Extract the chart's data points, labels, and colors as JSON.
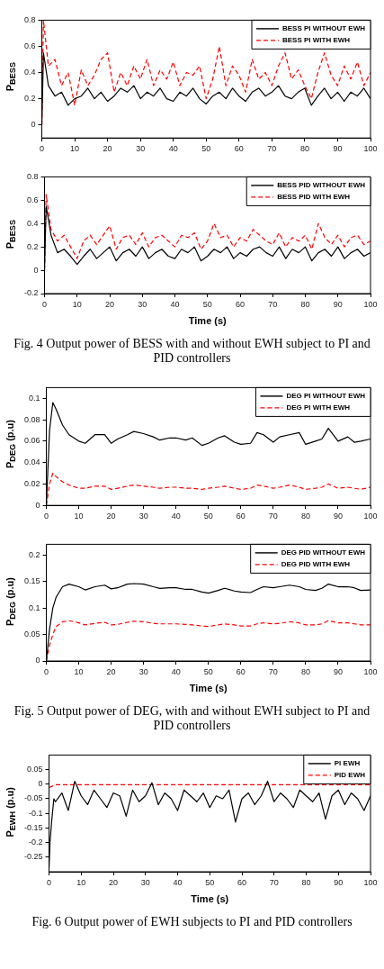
{
  "chart_data": [
    {
      "type": "line",
      "ylabel": "P$_{BESS}$",
      "xlim": [
        0,
        100
      ],
      "ylim": [
        -0.1,
        0.8
      ],
      "xticks": [
        0,
        10,
        20,
        30,
        40,
        50,
        60,
        70,
        80,
        90,
        100
      ],
      "yticks": [
        0,
        0.2,
        0.4,
        0.6,
        0.8
      ],
      "grid": false,
      "legend": "top right",
      "marker": "none",
      "x": [
        0,
        0.5,
        2,
        4,
        6,
        8,
        10,
        12,
        14,
        16,
        18,
        20,
        22,
        24,
        26,
        28,
        30,
        32,
        34,
        36,
        38,
        40,
        42,
        44,
        46,
        48,
        50,
        52,
        54,
        56,
        58,
        60,
        62,
        64,
        66,
        68,
        70,
        72,
        74,
        76,
        78,
        80,
        82,
        84,
        86,
        88,
        90,
        92,
        94,
        96,
        98,
        100
      ],
      "series": [
        {
          "name": "BESS PI WITHOUT EWH",
          "color": "#000000",
          "line_style": "solid",
          "values": [
            0,
            0.55,
            0.3,
            0.22,
            0.25,
            0.15,
            0.2,
            0.22,
            0.28,
            0.2,
            0.25,
            0.18,
            0.22,
            0.28,
            0.25,
            0.3,
            0.2,
            0.25,
            0.22,
            0.28,
            0.2,
            0.18,
            0.25,
            0.22,
            0.28,
            0.2,
            0.16,
            0.22,
            0.25,
            0.2,
            0.28,
            0.22,
            0.18,
            0.25,
            0.28,
            0.22,
            0.25,
            0.3,
            0.22,
            0.2,
            0.25,
            0.28,
            0.15,
            0.22,
            0.28,
            0.2,
            0.25,
            0.18,
            0.25,
            0.22,
            0.28,
            0.2
          ]
        },
        {
          "name": "BESS PI WITH EWH",
          "color": "#ff0000",
          "line_style": "dashed",
          "values": [
            0,
            0.8,
            0.45,
            0.5,
            0.3,
            0.4,
            0.15,
            0.42,
            0.3,
            0.38,
            0.5,
            0.55,
            0.25,
            0.4,
            0.3,
            0.45,
            0.35,
            0.5,
            0.3,
            0.42,
            0.35,
            0.48,
            0.3,
            0.4,
            0.38,
            0.45,
            0.2,
            0.35,
            0.6,
            0.3,
            0.45,
            0.38,
            0.25,
            0.5,
            0.35,
            0.4,
            0.3,
            0.45,
            0.55,
            0.35,
            0.42,
            0.3,
            0.2,
            0.4,
            0.55,
            0.38,
            0.3,
            0.45,
            0.35,
            0.48,
            0.3,
            0.4
          ]
        }
      ]
    },
    {
      "type": "line",
      "ylabel": "P$_{BESS}$",
      "xlabel": "Time (s)",
      "xlim": [
        0,
        100
      ],
      "ylim": [
        -0.2,
        0.8
      ],
      "xticks": [
        0,
        10,
        20,
        30,
        40,
        50,
        60,
        70,
        80,
        90,
        100
      ],
      "yticks": [
        -0.2,
        0,
        0.2,
        0.4,
        0.6,
        0.8
      ],
      "grid": false,
      "legend": "top right",
      "marker": "none",
      "annotations": [
        "Fig. 4 Output power of BESS with and without EWH subject to PI and PID controllers"
      ],
      "x": [
        0,
        0.5,
        2,
        4,
        6,
        8,
        10,
        12,
        14,
        16,
        18,
        20,
        22,
        24,
        26,
        28,
        30,
        32,
        34,
        36,
        38,
        40,
        42,
        44,
        46,
        48,
        50,
        52,
        54,
        56,
        58,
        60,
        62,
        64,
        66,
        68,
        70,
        72,
        74,
        76,
        78,
        80,
        82,
        84,
        86,
        88,
        90,
        92,
        94,
        96,
        98,
        100
      ],
      "series": [
        {
          "name": "BESS PID WITHOUT EWH",
          "color": "#000000",
          "line_style": "solid",
          "values": [
            0,
            0.55,
            0.3,
            0.15,
            0.18,
            0.12,
            0.05,
            0.12,
            0.18,
            0.1,
            0.15,
            0.2,
            0.08,
            0.15,
            0.18,
            0.12,
            0.2,
            0.1,
            0.15,
            0.18,
            0.12,
            0.1,
            0.18,
            0.15,
            0.2,
            0.08,
            0.12,
            0.18,
            0.15,
            0.2,
            0.1,
            0.15,
            0.12,
            0.18,
            0.2,
            0.15,
            0.12,
            0.2,
            0.1,
            0.18,
            0.15,
            0.2,
            0.08,
            0.15,
            0.18,
            0.12,
            0.2,
            0.1,
            0.15,
            0.18,
            0.12,
            0.15
          ]
        },
        {
          "name": "BESS PID WITH EWH",
          "color": "#ff0000",
          "line_style": "dashed",
          "values": [
            0,
            0.65,
            0.35,
            0.25,
            0.3,
            0.2,
            0.1,
            0.25,
            0.3,
            0.22,
            0.3,
            0.38,
            0.18,
            0.28,
            0.3,
            0.22,
            0.32,
            0.2,
            0.28,
            0.3,
            0.25,
            0.2,
            0.3,
            0.28,
            0.32,
            0.18,
            0.25,
            0.4,
            0.28,
            0.3,
            0.2,
            0.28,
            0.25,
            0.35,
            0.3,
            0.25,
            0.22,
            0.32,
            0.2,
            0.28,
            0.25,
            0.3,
            0.18,
            0.4,
            0.28,
            0.22,
            0.3,
            0.2,
            0.28,
            0.3,
            0.22,
            0.25
          ]
        }
      ]
    },
    {
      "type": "line",
      "ylabel": "P$_{DEG}$ (p.u)",
      "xlim": [
        0,
        100
      ],
      "ylim": [
        0,
        0.11
      ],
      "xticks": [
        0,
        10,
        20,
        30,
        40,
        50,
        60,
        70,
        80,
        90,
        100
      ],
      "yticks": [
        0,
        0.02,
        0.04,
        0.06,
        0.08,
        0.1
      ],
      "grid": false,
      "legend": "top right",
      "marker": "none",
      "x": [
        0,
        1,
        2,
        3,
        5,
        7,
        10,
        12,
        15,
        18,
        20,
        22,
        25,
        27,
        30,
        33,
        35,
        38,
        40,
        43,
        45,
        48,
        50,
        53,
        55,
        58,
        60,
        63,
        65,
        67,
        70,
        72,
        75,
        78,
        80,
        83,
        85,
        87,
        90,
        93,
        95,
        97,
        100
      ],
      "series": [
        {
          "name": "DEG PI WITHOUT EWH",
          "color": "#000000",
          "line_style": "solid",
          "values": [
            0,
            0.07,
            0.096,
            0.09,
            0.075,
            0.066,
            0.06,
            0.058,
            0.066,
            0.066,
            0.058,
            0.062,
            0.066,
            0.069,
            0.067,
            0.064,
            0.061,
            0.063,
            0.063,
            0.061,
            0.063,
            0.056,
            0.058,
            0.063,
            0.065,
            0.059,
            0.057,
            0.058,
            0.068,
            0.066,
            0.059,
            0.064,
            0.066,
            0.068,
            0.057,
            0.06,
            0.062,
            0.072,
            0.06,
            0.064,
            0.059,
            0.06,
            0.062
          ]
        },
        {
          "name": "DEG PI WITH EWH",
          "color": "#ff0000",
          "line_style": "dashed",
          "values": [
            0,
            0.02,
            0.03,
            0.027,
            0.022,
            0.019,
            0.016,
            0.016,
            0.018,
            0.018,
            0.015,
            0.016,
            0.018,
            0.019,
            0.018,
            0.017,
            0.016,
            0.017,
            0.017,
            0.016,
            0.016,
            0.015,
            0.016,
            0.017,
            0.018,
            0.016,
            0.015,
            0.016,
            0.019,
            0.018,
            0.016,
            0.017,
            0.019,
            0.017,
            0.015,
            0.016,
            0.017,
            0.02,
            0.016,
            0.017,
            0.016,
            0.015,
            0.017
          ]
        }
      ]
    },
    {
      "type": "line",
      "ylabel": "P$_{DEG}$ (p.u)",
      "xlabel": "Time (s)",
      "xlim": [
        0,
        100
      ],
      "ylim": [
        0,
        0.22
      ],
      "xticks": [
        0,
        10,
        20,
        30,
        40,
        50,
        60,
        70,
        80,
        90,
        100
      ],
      "yticks": [
        0,
        0.05,
        0.1,
        0.15,
        0.2
      ],
      "grid": false,
      "legend": "top right",
      "marker": "none",
      "annotations": [
        "Fig. 5 Output power of DEG, with and without EWH subject to PI and PID controllers"
      ],
      "x": [
        0,
        1,
        2,
        3,
        5,
        7,
        10,
        12,
        15,
        18,
        20,
        22,
        25,
        27,
        30,
        33,
        35,
        38,
        40,
        43,
        45,
        48,
        50,
        53,
        55,
        58,
        60,
        63,
        65,
        67,
        70,
        72,
        75,
        78,
        80,
        83,
        85,
        87,
        90,
        93,
        95,
        97,
        100
      ],
      "series": [
        {
          "name": "DEG PID WITHOUT EWH",
          "color": "#000000",
          "line_style": "solid",
          "values": [
            0,
            0.06,
            0.1,
            0.12,
            0.14,
            0.145,
            0.14,
            0.134,
            0.14,
            0.143,
            0.136,
            0.138,
            0.145,
            0.146,
            0.145,
            0.14,
            0.137,
            0.138,
            0.138,
            0.135,
            0.135,
            0.13,
            0.128,
            0.133,
            0.137,
            0.132,
            0.13,
            0.129,
            0.135,
            0.14,
            0.138,
            0.14,
            0.143,
            0.14,
            0.135,
            0.133,
            0.137,
            0.145,
            0.14,
            0.14,
            0.138,
            0.133,
            0.134
          ]
        },
        {
          "name": "DEG PID WITH EWH",
          "color": "#ff0000",
          "line_style": "dashed",
          "values": [
            0,
            0.03,
            0.05,
            0.065,
            0.074,
            0.076,
            0.072,
            0.068,
            0.071,
            0.073,
            0.068,
            0.069,
            0.073,
            0.075,
            0.074,
            0.071,
            0.07,
            0.07,
            0.07,
            0.069,
            0.068,
            0.066,
            0.065,
            0.068,
            0.07,
            0.068,
            0.066,
            0.066,
            0.07,
            0.072,
            0.07,
            0.071,
            0.074,
            0.072,
            0.068,
            0.068,
            0.07,
            0.076,
            0.072,
            0.072,
            0.07,
            0.068,
            0.068
          ]
        }
      ]
    },
    {
      "type": "line",
      "ylabel": "P$_{EWH}$ (p.u)",
      "xlabel": "Time (s)",
      "xlim": [
        0,
        100
      ],
      "ylim": [
        -0.3,
        0.1
      ],
      "xticks": [
        0,
        10,
        20,
        30,
        40,
        50,
        60,
        70,
        80,
        90,
        100
      ],
      "yticks": [
        -0.25,
        -0.2,
        -0.15,
        -0.1,
        -0.05,
        0,
        0.05
      ],
      "grid": false,
      "legend": "top right",
      "marker": "none",
      "annotations": [
        "Fig. 6 Output power of EWH subjects to PI and PID controllers"
      ],
      "x": [
        0,
        0.3,
        0.8,
        1.5,
        2,
        4,
        6,
        8,
        10,
        12,
        14,
        16,
        18,
        20,
        22,
        24,
        26,
        28,
        30,
        32,
        34,
        36,
        38,
        40,
        42,
        44,
        46,
        48,
        50,
        52,
        54,
        56,
        58,
        60,
        62,
        64,
        66,
        68,
        70,
        72,
        74,
        76,
        78,
        80,
        82,
        84,
        86,
        88,
        90,
        92,
        94,
        96,
        98,
        100
      ],
      "series": [
        {
          "name": "PI EWH",
          "color": "#000000",
          "line_style": "solid",
          "values": [
            -0.29,
            -0.2,
            -0.13,
            -0.05,
            -0.06,
            -0.03,
            -0.09,
            0.01,
            -0.04,
            -0.07,
            -0.02,
            -0.05,
            -0.08,
            -0.03,
            -0.04,
            -0.11,
            -0.02,
            -0.06,
            -0.04,
            0.005,
            -0.07,
            -0.03,
            -0.05,
            -0.09,
            -0.02,
            -0.04,
            -0.06,
            -0.03,
            -0.08,
            -0.04,
            -0.05,
            -0.02,
            -0.13,
            -0.05,
            -0.03,
            -0.07,
            -0.04,
            0.01,
            -0.06,
            -0.03,
            -0.05,
            -0.08,
            -0.02,
            -0.04,
            -0.06,
            -0.03,
            -0.12,
            -0.04,
            -0.02,
            -0.07,
            -0.03,
            -0.05,
            -0.09,
            -0.04
          ]
        },
        {
          "name": "PID EWH",
          "color": "#ff0000",
          "line_style": "dashed",
          "values": [
            -0.01,
            -0.01,
            -0.008,
            -0.004,
            -0.002,
            -0.002,
            -0.002,
            -0.002,
            -0.002,
            -0.002,
            -0.002,
            -0.002,
            -0.002,
            -0.002,
            -0.002,
            -0.002,
            -0.002,
            -0.002,
            -0.002,
            -0.002,
            -0.002,
            -0.002,
            -0.002,
            -0.002,
            -0.002,
            -0.002,
            -0.002,
            -0.002,
            -0.002,
            -0.002,
            -0.002,
            -0.002,
            -0.002,
            -0.002,
            -0.002,
            -0.002,
            -0.002,
            -0.002,
            -0.002,
            -0.002,
            -0.002,
            -0.002,
            -0.002,
            -0.002,
            -0.002,
            -0.002,
            -0.002,
            -0.002,
            -0.002,
            -0.002,
            -0.002,
            -0.002,
            -0.002,
            -0.002
          ]
        }
      ]
    }
  ]
}
